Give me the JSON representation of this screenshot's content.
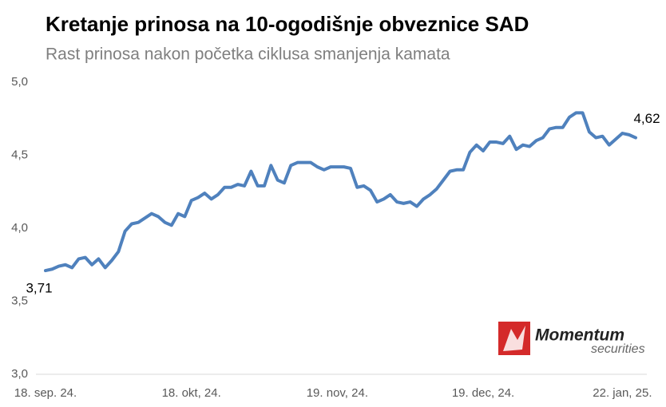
{
  "chart_data": {
    "type": "line",
    "title": "Kretanje prinosa na 10-ogodišnje obveznice SAD",
    "subtitle": "Rast prinosa nakon početka ciklusa smanjenja kamata",
    "categories": [
      "18. sep. 24.",
      null,
      null,
      null,
      null,
      null,
      null,
      null,
      null,
      null,
      null,
      null,
      null,
      null,
      null,
      null,
      null,
      null,
      null,
      null,
      null,
      null,
      "18. okt, 24.",
      null,
      null,
      null,
      null,
      null,
      null,
      null,
      null,
      null,
      null,
      null,
      null,
      null,
      null,
      null,
      null,
      null,
      null,
      null,
      null,
      null,
      "19. nov, 24.",
      null,
      null,
      null,
      null,
      null,
      null,
      null,
      null,
      null,
      null,
      null,
      null,
      null,
      null,
      null,
      null,
      null,
      null,
      null,
      null,
      null,
      "19. dec, 24.",
      null,
      null,
      null,
      null,
      null,
      null,
      null,
      null,
      null,
      null,
      null,
      null,
      null,
      null,
      null,
      null,
      null,
      null,
      null,
      null,
      "22. jan, 25.",
      null,
      null
    ],
    "values": [
      3.71,
      3.72,
      3.74,
      3.75,
      3.73,
      3.79,
      3.8,
      3.75,
      3.79,
      3.73,
      3.78,
      3.84,
      3.98,
      4.03,
      4.04,
      4.07,
      4.1,
      4.08,
      4.04,
      4.02,
      4.1,
      4.08,
      4.19,
      4.21,
      4.24,
      4.2,
      4.23,
      4.28,
      4.28,
      4.3,
      4.29,
      4.39,
      4.29,
      4.29,
      4.43,
      4.33,
      4.31,
      4.43,
      4.45,
      4.45,
      4.45,
      4.42,
      4.4,
      4.42,
      4.42,
      4.42,
      4.41,
      4.28,
      4.29,
      4.26,
      4.18,
      4.2,
      4.23,
      4.18,
      4.17,
      4.18,
      4.15,
      4.2,
      4.23,
      4.27,
      4.33,
      4.39,
      4.4,
      4.4,
      4.52,
      4.57,
      4.53,
      4.59,
      4.59,
      4.58,
      4.63,
      4.54,
      4.57,
      4.56,
      4.6,
      4.62,
      4.68,
      4.69,
      4.69,
      4.76,
      4.79,
      4.79,
      4.66,
      4.62,
      4.63,
      4.57,
      4.61,
      4.65,
      4.64,
      4.62
    ],
    "value_labels": [
      "3,71",
      null,
      null,
      null,
      null,
      null,
      null,
      null,
      null,
      null,
      null,
      null,
      null,
      null,
      null,
      null,
      null,
      null,
      null,
      null,
      null,
      null,
      null,
      null,
      null,
      null,
      null,
      null,
      null,
      null,
      null,
      null,
      null,
      null,
      null,
      null,
      null,
      null,
      null,
      null,
      null,
      null,
      null,
      null,
      null,
      null,
      null,
      null,
      null,
      null,
      null,
      null,
      null,
      null,
      null,
      null,
      null,
      null,
      null,
      null,
      null,
      null,
      null,
      null,
      null,
      null,
      null,
      null,
      null,
      null,
      null,
      null,
      null,
      null,
      null,
      null,
      null,
      null,
      null,
      null,
      null,
      null,
      null,
      null,
      null,
      null,
      null,
      null,
      null,
      "4,62"
    ],
    "color": "#4f81bd",
    "ylim": [
      3,
      5
    ],
    "yticks": [
      {
        "value": 3,
        "label": "3,0"
      },
      {
        "value": 3.5,
        "label": "3,5"
      },
      {
        "value": 4,
        "label": "4,0"
      },
      {
        "value": 4.5,
        "label": "4,5"
      },
      {
        "value": 5,
        "label": "5,0"
      }
    ],
    "grid": false
  },
  "logo": {
    "name": "Momentum",
    "tagline": "securities"
  }
}
